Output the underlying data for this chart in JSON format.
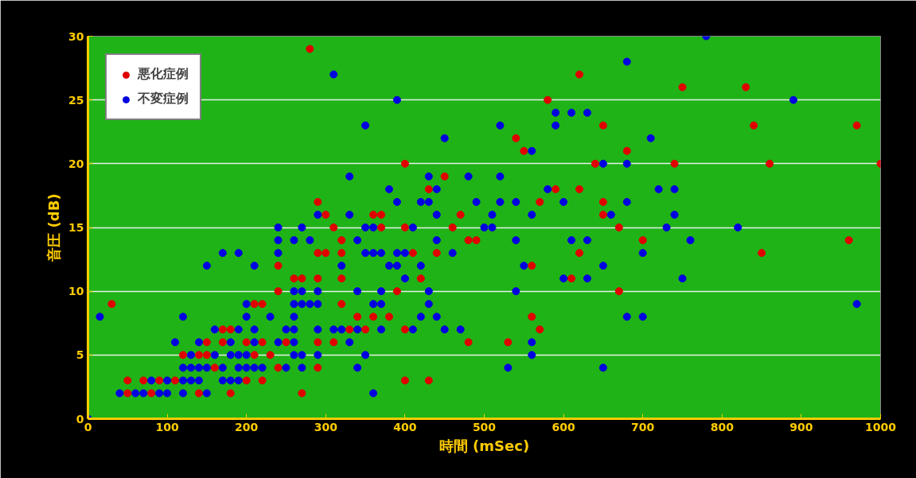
{
  "chart_data": {
    "type": "scatter",
    "xlabel": "時間 (mSec)",
    "ylabel": "音圧 (dB)",
    "xlim": [
      0,
      1000
    ],
    "ylim": [
      0,
      30
    ],
    "xticks": [
      0,
      100,
      200,
      300,
      400,
      500,
      600,
      700,
      800,
      900,
      1000
    ],
    "yticks": [
      0,
      5,
      10,
      15,
      20,
      25,
      30
    ],
    "grid": "y",
    "legend": "top left",
    "marker": "circle",
    "series": [
      {
        "name": "悪化症例",
        "color": "#e00000",
        "x": [
          30,
          170,
          180,
          150,
          170,
          120,
          140,
          150,
          160,
          50,
          70,
          90,
          110,
          50,
          80,
          140,
          180,
          290,
          300,
          360,
          370,
          310,
          370,
          400,
          320,
          290,
          300,
          320,
          410,
          240,
          260,
          270,
          290,
          320,
          240,
          390,
          210,
          220,
          320,
          340,
          360,
          380,
          330,
          350,
          400,
          200,
          220,
          250,
          290,
          310,
          210,
          230,
          240,
          290,
          200,
          220,
          400,
          270,
          400,
          280,
          580,
          540,
          550,
          450,
          430,
          590,
          570,
          470,
          460,
          480,
          490,
          440,
          560,
          420,
          610,
          560,
          570,
          480,
          530,
          430,
          620,
          750,
          830,
          650,
          840,
          970,
          680,
          640,
          740,
          860,
          1000,
          620,
          650,
          650,
          670,
          700,
          960,
          620,
          850,
          670
        ],
        "values": [
          9,
          7,
          7,
          6,
          6,
          5,
          5,
          5,
          4,
          3,
          3,
          3,
          3,
          2,
          2,
          2,
          2,
          17,
          16,
          16,
          16,
          15,
          15,
          15,
          14,
          13,
          13,
          13,
          13,
          12,
          11,
          11,
          11,
          11,
          10,
          10,
          9,
          9,
          9,
          8,
          8,
          8,
          7,
          7,
          7,
          6,
          6,
          6,
          6,
          6,
          5,
          5,
          4,
          4,
          3,
          3,
          3,
          2,
          20,
          29,
          25,
          22,
          21,
          19,
          18,
          18,
          17,
          16,
          15,
          14,
          14,
          13,
          12,
          11,
          11,
          8,
          7,
          6,
          6,
          3,
          27,
          26,
          26,
          23,
          23,
          23,
          21,
          20,
          20,
          20,
          20,
          18,
          17,
          16,
          15,
          14,
          14,
          13,
          13,
          10
        ]
      },
      {
        "name": "不変症例",
        "color": "#0000e0",
        "x": [
          170,
          190,
          150,
          15,
          120,
          160,
          190,
          110,
          140,
          180,
          130,
          160,
          180,
          190,
          120,
          130,
          140,
          150,
          170,
          190,
          80,
          100,
          120,
          130,
          140,
          170,
          180,
          190,
          40,
          60,
          70,
          90,
          100,
          120,
          150,
          0,
          310,
          350,
          330,
          380,
          390,
          290,
          330,
          240,
          270,
          350,
          360,
          410,
          240,
          260,
          280,
          340,
          240,
          350,
          360,
          370,
          390,
          400,
          210,
          320,
          380,
          390,
          400,
          260,
          270,
          290,
          340,
          370,
          200,
          260,
          270,
          280,
          290,
          360,
          370,
          200,
          230,
          260,
          210,
          250,
          260,
          290,
          310,
          320,
          340,
          370,
          410,
          210,
          240,
          260,
          330,
          200,
          260,
          270,
          290,
          350,
          200,
          210,
          220,
          250,
          270,
          340,
          360,
          390,
          590,
          520,
          590,
          450,
          560,
          430,
          480,
          520,
          440,
          580,
          420,
          430,
          490,
          520,
          540,
          600,
          440,
          510,
          560,
          500,
          510,
          440,
          540,
          610,
          460,
          420,
          550,
          600,
          430,
          540,
          430,
          420,
          440,
          450,
          470,
          560,
          560,
          530,
          780,
          680,
          890,
          610,
          630,
          710,
          650,
          680,
          720,
          740,
          680,
          660,
          740,
          730,
          820,
          630,
          760,
          700,
          650,
          630,
          750,
          970,
          680,
          700,
          650
        ],
        "values": [
          13,
          13,
          12,
          8,
          8,
          7,
          7,
          6,
          6,
          6,
          5,
          5,
          5,
          5,
          4,
          4,
          4,
          4,
          4,
          4,
          3,
          3,
          3,
          3,
          3,
          3,
          3,
          3,
          2,
          2,
          2,
          2,
          2,
          2,
          2,
          0,
          27,
          23,
          19,
          18,
          17,
          16,
          16,
          15,
          15,
          15,
          15,
          15,
          14,
          14,
          14,
          14,
          13,
          13,
          13,
          13,
          13,
          13,
          12,
          12,
          12,
          12,
          11,
          10,
          10,
          10,
          10,
          10,
          9,
          9,
          9,
          9,
          9,
          9,
          9,
          8,
          8,
          8,
          7,
          7,
          7,
          7,
          7,
          7,
          7,
          7,
          7,
          6,
          6,
          6,
          6,
          5,
          5,
          5,
          5,
          5,
          4,
          4,
          4,
          4,
          4,
          4,
          2,
          25,
          24,
          23,
          23,
          22,
          21,
          19,
          19,
          19,
          18,
          18,
          17,
          17,
          17,
          17,
          17,
          17,
          16,
          16,
          16,
          15,
          15,
          14,
          14,
          14,
          13,
          12,
          12,
          11,
          10,
          10,
          9,
          8,
          8,
          7,
          7,
          6,
          5,
          4,
          30,
          28,
          25,
          24,
          24,
          22,
          20,
          20,
          18,
          18,
          17,
          16,
          16,
          15,
          15,
          14,
          14,
          13,
          12,
          11,
          11,
          9,
          8,
          8,
          4
        ]
      }
    ]
  }
}
